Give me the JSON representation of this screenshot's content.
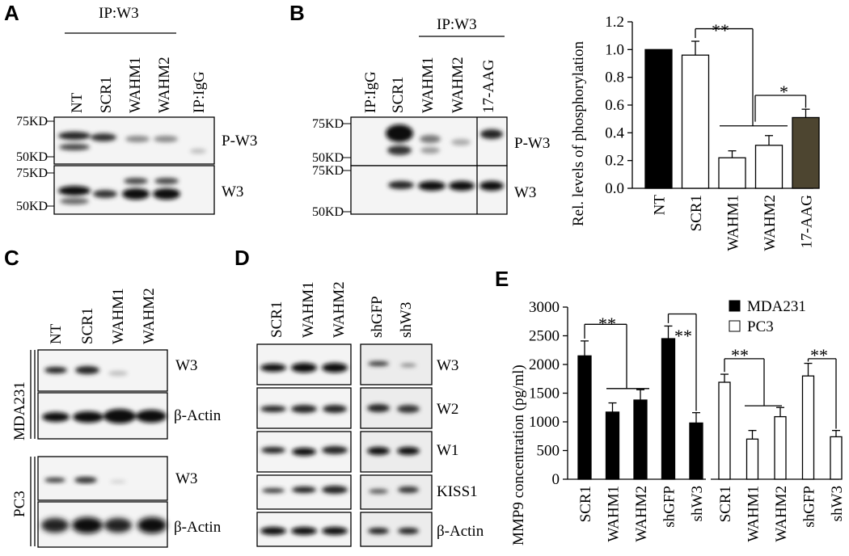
{
  "panels": {
    "A": {
      "label": "A",
      "ip_label": "IP:W3",
      "lanes": [
        "NT",
        "SCR1",
        "WAHM1",
        "WAHM2",
        "IP:IgG"
      ],
      "markers_top": [
        "75KD",
        "50KD"
      ],
      "markers_bottom": [
        "75KD",
        "50KD"
      ],
      "rows": [
        "P-W3",
        "W3"
      ]
    },
    "B": {
      "label": "B",
      "ip_label": "IP:W3",
      "lanes": [
        "IP:IgG",
        "SCR1",
        "WAHM1",
        "WAHM2",
        "17-AAG"
      ],
      "markers_top": [
        "75KD",
        "50KD"
      ],
      "markers_bottom": [
        "75KD",
        "50KD"
      ],
      "rows": [
        "P-W3",
        "W3"
      ]
    },
    "C": {
      "label": "C",
      "lanes": [
        "NT",
        "SCR1",
        "WAHM1",
        "WAHM2"
      ],
      "groups": [
        "MDA231",
        "PC3"
      ],
      "rows": [
        "W3",
        "β-Actin",
        "W3",
        "β-Actin"
      ]
    },
    "D": {
      "label": "D",
      "lanes_left": [
        "SCR1",
        "WAHM1",
        "WAHM2"
      ],
      "lanes_right": [
        "shGFP",
        "shW3"
      ],
      "rows": [
        "W3",
        "W2",
        "W1",
        "KISS1",
        "β-Actin"
      ]
    },
    "E": {
      "label": "E"
    }
  },
  "chart_data": [
    {
      "type": "bar",
      "panel": "B",
      "categories": [
        "NT",
        "SCR1",
        "WAHM1",
        "WAHM2",
        "17-AAG"
      ],
      "values": [
        1.0,
        0.96,
        0.22,
        0.31,
        0.51
      ],
      "errors": [
        0.0,
        0.1,
        0.05,
        0.07,
        0.06
      ],
      "colors": [
        "#000000",
        "#ffffff",
        "#ffffff",
        "#ffffff",
        "#4d4530"
      ],
      "ylabel": "Rel. levels of phosphorylation",
      "ylim": [
        0,
        1.2
      ],
      "yticks": [
        "0.0",
        "0.2",
        "0.4",
        "0.6",
        "0.8",
        "1.0",
        "1.2"
      ],
      "annotations": [
        "**",
        "*"
      ]
    },
    {
      "type": "bar",
      "panel": "E",
      "ylabel": "MMP9 concentration (pg/ml)",
      "ylim": [
        0,
        3000
      ],
      "yticks": [
        "0",
        "500",
        "1000",
        "1500",
        "2000",
        "2500",
        "3000"
      ],
      "series": [
        {
          "name": "MDA231",
          "color": "#000000",
          "categories": [
            "SCR1",
            "WAHM1",
            "WAHM2",
            "shGFP",
            "shW3"
          ],
          "values": [
            2150,
            1170,
            1380,
            2450,
            980
          ],
          "errors": [
            260,
            160,
            180,
            220,
            180
          ]
        },
        {
          "name": "PC3",
          "color": "#ffffff",
          "categories": [
            "SCR1",
            "WAHM1",
            "WAHM2",
            "shGFP",
            "shW3"
          ],
          "values": [
            1690,
            700,
            1090,
            1800,
            740
          ],
          "errors": [
            140,
            150,
            160,
            220,
            110
          ]
        }
      ],
      "annotations": [
        "**",
        "**",
        "**",
        "**"
      ],
      "legend": "top-right"
    }
  ]
}
